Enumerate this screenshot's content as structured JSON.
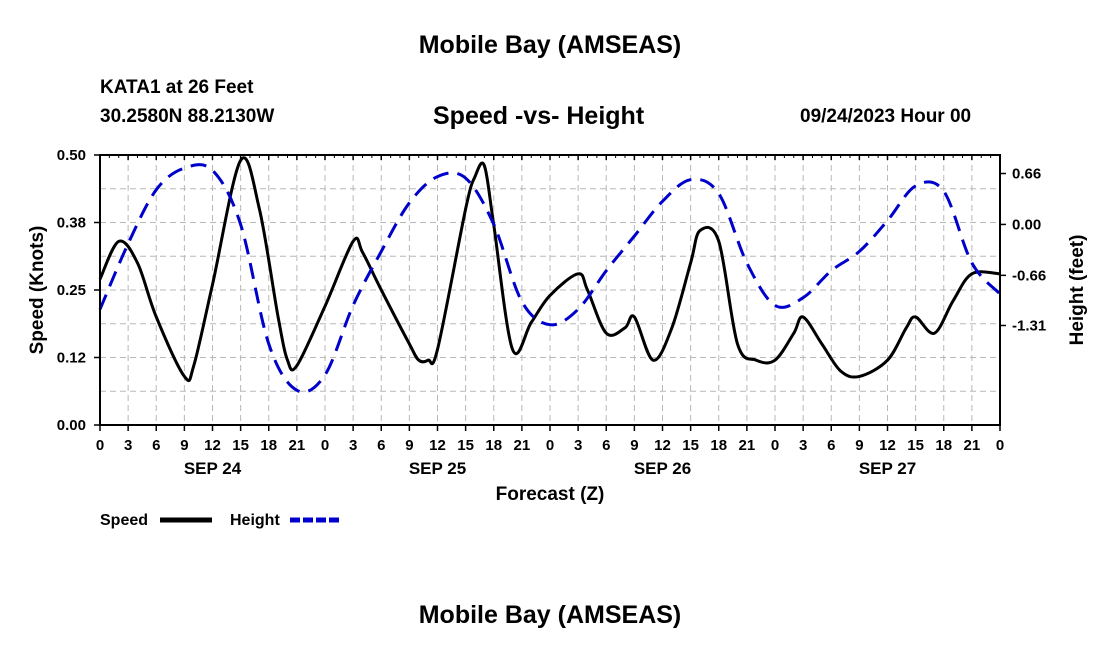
{
  "header": {
    "title": "Mobile Bay (AMSEAS)",
    "station": "KATA1 at 26 Feet",
    "coordinates": "30.2580N  88.2130W",
    "subtitle": "Speed -vs- Height",
    "datetime": "09/24/2023 Hour 00"
  },
  "footer": {
    "title": "Mobile Bay (AMSEAS)"
  },
  "colors": {
    "speed": "#000000",
    "height": "#0000cc",
    "grid": "#b8b8b8"
  },
  "chart_data": {
    "type": "line",
    "title": "Speed -vs- Height",
    "xlabel": "Forecast (Z)",
    "ylabel_left": "Speed (Knots)",
    "ylabel_right": "Height (feet)",
    "x_unit": "forecast hour from 09/24/2023 00Z",
    "xlim": [
      0,
      96
    ],
    "ylim_left": [
      0,
      0.5
    ],
    "ylim_right": [
      -2.6,
      0.9
    ],
    "x_ticks": [
      0,
      3,
      6,
      9,
      12,
      15,
      18,
      21,
      24,
      27,
      30,
      33,
      36,
      39,
      42,
      45,
      48,
      51,
      54,
      57,
      60,
      63,
      66,
      69,
      72,
      75,
      78,
      81,
      84,
      87,
      90,
      93,
      96
    ],
    "x_tick_labels": [
      "0",
      "3",
      "6",
      "9",
      "12",
      "15",
      "18",
      "21",
      "0",
      "3",
      "6",
      "9",
      "12",
      "15",
      "18",
      "21",
      "0",
      "3",
      "6",
      "9",
      "12",
      "15",
      "18",
      "21",
      "0",
      "3",
      "6",
      "9",
      "12",
      "15",
      "18",
      "21",
      "0"
    ],
    "day_labels": [
      {
        "x": 12,
        "label": "SEP 24"
      },
      {
        "x": 36,
        "label": "SEP 25"
      },
      {
        "x": 60,
        "label": "SEP 26"
      },
      {
        "x": 84,
        "label": "SEP 27"
      }
    ],
    "y_left_ticks": [
      0.0,
      0.125,
      0.25,
      0.375,
      0.5
    ],
    "y_left_tick_labels": [
      "0.00",
      "0.12",
      "0.25",
      "0.38",
      "0.50"
    ],
    "y_right_ticks": [
      0.66,
      0.0,
      -0.66,
      -1.31
    ],
    "y_right_tick_labels": [
      "0.66",
      "0.00",
      "-0.66",
      "-1.31"
    ],
    "grid": true,
    "legend": {
      "position": "bottom-left",
      "entries": [
        {
          "label": "Speed",
          "series": "speed",
          "style": "solid"
        },
        {
          "label": "Height",
          "series": "height",
          "style": "dashed"
        }
      ]
    },
    "series": [
      {
        "name": "Speed",
        "axis": "left",
        "style": "solid",
        "x": [
          0,
          2,
          4,
          6,
          9,
          10,
          12,
          15,
          17,
          19,
          20,
          21,
          24,
          27,
          28,
          30,
          33,
          34,
          35,
          36,
          39,
          40,
          41,
          42,
          44,
          46,
          48,
          51,
          52,
          54,
          56,
          57,
          59,
          61,
          63,
          64,
          66,
          68,
          70,
          72,
          74,
          75,
          77,
          79,
          81,
          84,
          86,
          87,
          89,
          91,
          93,
          96
        ],
        "values": [
          0.27,
          0.34,
          0.3,
          0.2,
          0.09,
          0.11,
          0.26,
          0.49,
          0.4,
          0.2,
          0.12,
          0.11,
          0.22,
          0.34,
          0.32,
          0.25,
          0.15,
          0.12,
          0.12,
          0.14,
          0.4,
          0.46,
          0.48,
          0.37,
          0.14,
          0.19,
          0.24,
          0.28,
          0.25,
          0.17,
          0.18,
          0.2,
          0.12,
          0.18,
          0.3,
          0.36,
          0.34,
          0.15,
          0.12,
          0.12,
          0.17,
          0.2,
          0.15,
          0.1,
          0.09,
          0.12,
          0.18,
          0.2,
          0.17,
          0.23,
          0.28,
          0.28
        ]
      },
      {
        "name": "Height",
        "axis": "right",
        "style": "dashed",
        "x": [
          0,
          3,
          6,
          9,
          12,
          15,
          18,
          21,
          24,
          27,
          30,
          33,
          36,
          39,
          42,
          45,
          48,
          51,
          54,
          57,
          60,
          63,
          66,
          69,
          72,
          75,
          78,
          81,
          84,
          87,
          90,
          93,
          96
        ],
        "values": [
          -1.1,
          -0.25,
          0.45,
          0.73,
          0.7,
          0.0,
          -1.55,
          -2.15,
          -1.95,
          -1.05,
          -0.35,
          0.28,
          0.62,
          0.6,
          0.0,
          -1.0,
          -1.3,
          -1.1,
          -0.6,
          -0.15,
          0.3,
          0.58,
          0.4,
          -0.5,
          -1.05,
          -0.95,
          -0.6,
          -0.35,
          0.05,
          0.5,
          0.43,
          -0.5,
          -0.9
        ]
      }
    ]
  }
}
